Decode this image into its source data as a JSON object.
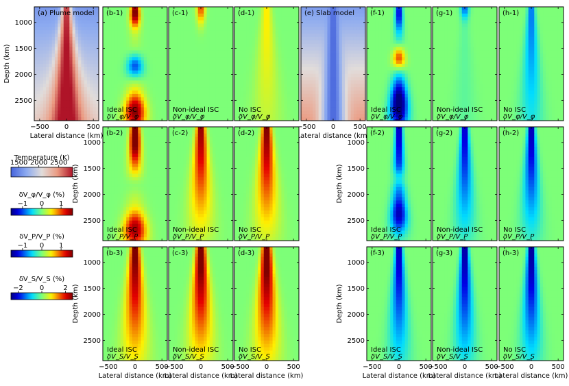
{
  "chart_data": [
    {
      "id": "a",
      "label": "(a) Plume model",
      "type": "heatmap",
      "field": "plume-temperature",
      "annotation": "",
      "quantity": "Temperature (K)"
    },
    {
      "id": "b-1",
      "label": "(b-1)",
      "type": "heatmap",
      "field": "plume-ideal-phi",
      "annotation": "Ideal ISC",
      "quantity": "δV_φ/V_φ"
    },
    {
      "id": "c-1",
      "label": "(c-1)",
      "type": "heatmap",
      "field": "plume-nonideal-phi",
      "annotation": "Non-ideal ISC",
      "quantity": "δV_φ/V_φ"
    },
    {
      "id": "d-1",
      "label": "(d-1)",
      "type": "heatmap",
      "field": "plume-noisc-phi",
      "annotation": "No ISC",
      "quantity": "δV_φ/V_φ"
    },
    {
      "id": "e",
      "label": "(e) Slab model",
      "type": "heatmap",
      "field": "slab-temperature",
      "annotation": "",
      "quantity": "Temperature (K)"
    },
    {
      "id": "f-1",
      "label": "(f-1)",
      "type": "heatmap",
      "field": "slab-ideal-phi",
      "annotation": "Ideal ISC",
      "quantity": "δV_φ/V_φ"
    },
    {
      "id": "g-1",
      "label": "(g-1)",
      "type": "heatmap",
      "field": "slab-nonideal-phi",
      "annotation": "Non-ideal ISC",
      "quantity": "δV_φ/V_φ"
    },
    {
      "id": "h-1",
      "label": "(h-1)",
      "type": "heatmap",
      "field": "slab-noisc-phi",
      "annotation": "No ISC",
      "quantity": "δV_φ/V_φ"
    },
    {
      "id": "b-2",
      "label": "(b-2)",
      "type": "heatmap",
      "field": "plume-ideal-p",
      "annotation": "Ideal ISC",
      "quantity": "δV_P/V_P"
    },
    {
      "id": "c-2",
      "label": "(c-2)",
      "type": "heatmap",
      "field": "plume-nonideal-p",
      "annotation": "Non-ideal ISC",
      "quantity": "δV_P/V_P"
    },
    {
      "id": "d-2",
      "label": "(d-2)",
      "type": "heatmap",
      "field": "plume-noisc-p",
      "annotation": "No ISC",
      "quantity": "δV_P/V_P"
    },
    {
      "id": "f-2",
      "label": "(f-2)",
      "type": "heatmap",
      "field": "slab-ideal-p",
      "annotation": "Ideal ISC",
      "quantity": "δV_P/V_P"
    },
    {
      "id": "g-2",
      "label": "(g-2)",
      "type": "heatmap",
      "field": "slab-nonideal-p",
      "annotation": "Non-ideal ISC",
      "quantity": "δV_P/V_P"
    },
    {
      "id": "h-2",
      "label": "(h-2)",
      "type": "heatmap",
      "field": "slab-noisc-p",
      "annotation": "No ISC",
      "quantity": "δV_P/V_P"
    },
    {
      "id": "b-3",
      "label": "(b-3)",
      "type": "heatmap",
      "field": "plume-ideal-s",
      "annotation": "Ideal ISC",
      "quantity": "δV_S/V_S"
    },
    {
      "id": "c-3",
      "label": "(c-3)",
      "type": "heatmap",
      "field": "plume-nonideal-s",
      "annotation": "Non-ideal ISC",
      "quantity": "δV_S/V_S"
    },
    {
      "id": "d-3",
      "label": "(d-3)",
      "type": "heatmap",
      "field": "plume-noisc-s",
      "annotation": "No ISC",
      "quantity": "δV_S/V_S"
    },
    {
      "id": "f-3",
      "label": "(f-3)",
      "type": "heatmap",
      "field": "slab-ideal-s",
      "annotation": "Ideal ISC",
      "quantity": "δV_S/V_S"
    },
    {
      "id": "g-3",
      "label": "(g-3)",
      "type": "heatmap",
      "field": "slab-nonideal-s",
      "annotation": "Non-ideal ISC",
      "quantity": "δV_S/V_S"
    },
    {
      "id": "h-3",
      "label": "(h-3)",
      "type": "heatmap",
      "field": "slab-noisc-s",
      "annotation": "No ISC",
      "quantity": "δV_S/V_S"
    }
  ],
  "axes": {
    "xlabel": "Lateral distance (km)",
    "ylabel": "Depth (km)",
    "xlim": [
      -600,
      600
    ],
    "ylim": [
      700,
      2891
    ],
    "xticks": [
      -500,
      0,
      500
    ],
    "yticks": [
      1000,
      1500,
      2000,
      2500
    ]
  },
  "colorbars": [
    {
      "id": "temperature",
      "label": "Temperature (K)",
      "ticks": [
        1500,
        2000,
        2500
      ],
      "range": [
        1300,
        2850
      ],
      "cmap": "coolwarm"
    },
    {
      "id": "phi",
      "label": "δV_φ/V_φ (%)",
      "ticks": [
        -1,
        0,
        1
      ],
      "range": [
        -1.6,
        1.6
      ],
      "cmap": "jet_r"
    },
    {
      "id": "p",
      "label": "δV_P/V_P (%)",
      "ticks": [
        -1,
        0,
        1
      ],
      "range": [
        -1.6,
        1.6
      ],
      "cmap": "jet_r"
    },
    {
      "id": "s",
      "label": "δV_S/V_S (%)",
      "ticks": [
        -2,
        0,
        2
      ],
      "range": [
        -2.6,
        2.6
      ],
      "cmap": "jet_r"
    }
  ],
  "colors": {
    "axis": "#000000",
    "background": "#ffffff"
  }
}
